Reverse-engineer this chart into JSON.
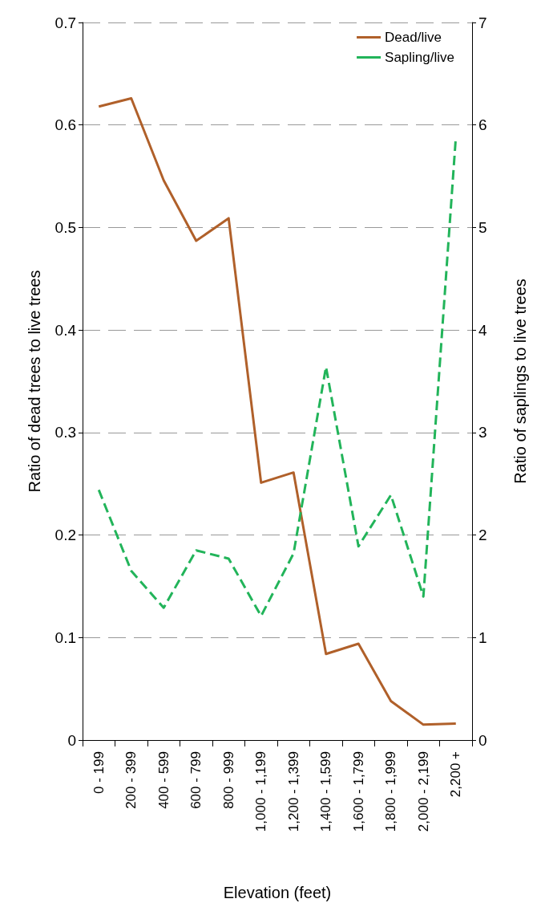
{
  "chart_data": {
    "type": "line",
    "xlabel": "Elevation (feet)",
    "ylabel": "Ratio of dead trees to live trees",
    "y2label": "Ratio of saplings to live trees",
    "categories": [
      "0 - 199",
      "200 - 399",
      "400 - 599",
      "600 - 799",
      "800 - 999",
      "1,000 - 1,199",
      "1,200 - 1,399",
      "1,400 - 1,599",
      "1,600 - 1,799",
      "1,800 - 1,999",
      "2,000 - 2,199",
      "2,200 +"
    ],
    "series": [
      {
        "name": "Dead/live",
        "color": "#b0602a",
        "line_style": "solid",
        "values": [
          0.618,
          0.626,
          0.546,
          0.487,
          0.509,
          0.251,
          0.261,
          0.084,
          0.094,
          0.038,
          0.015,
          0.016
        ]
      },
      {
        "name": "Sapling/live",
        "color": "#22b45a",
        "line_style": "dashed",
        "axis": "y2",
        "values": [
          2.44,
          1.65,
          1.29,
          1.85,
          1.77,
          1.21,
          1.82,
          3.64,
          1.89,
          2.39,
          1.4,
          5.88
        ]
      }
    ],
    "ylim": [
      0,
      0.7
    ],
    "yticks": [
      0,
      0.1,
      0.2,
      0.3,
      0.4,
      0.5,
      0.6,
      0.7
    ],
    "y2lim": [
      0,
      7
    ],
    "y2ticks": [
      0,
      1,
      2,
      3,
      4,
      5,
      6,
      7
    ],
    "grid": "y",
    "legend": "top right",
    "marker": "none"
  }
}
